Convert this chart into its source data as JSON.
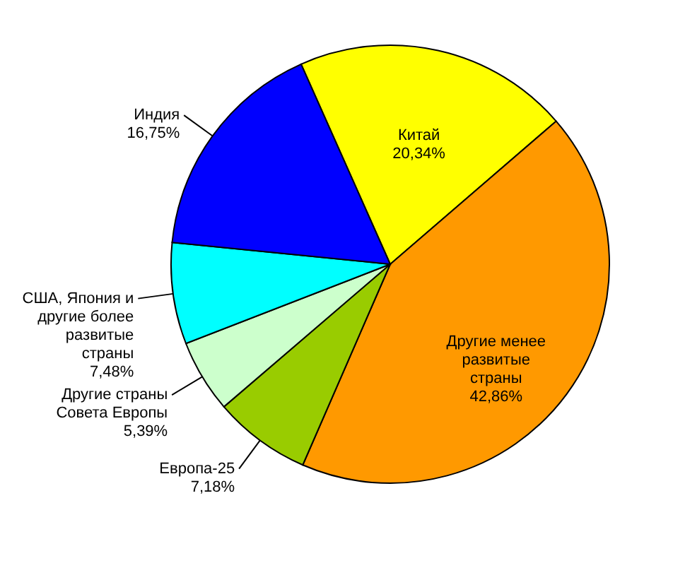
{
  "chart_data": {
    "type": "pie",
    "categories": [
      "Китай",
      "Другие менее развитые страны",
      "Европа-25",
      "Другие страны Совета Европы",
      "США, Япония и другие более развитые страны",
      "Индия"
    ],
    "values": [
      20.34,
      42.86,
      7.18,
      5.39,
      7.48,
      16.75
    ],
    "value_labels": [
      "20,34%",
      "42,86%",
      "7,18%",
      "5,39%",
      "7,48%",
      "16,75%"
    ],
    "colors": [
      "#ffff00",
      "#ff9900",
      "#99cc00",
      "#ccffcc",
      "#00ffff",
      "#0000ff"
    ]
  }
}
